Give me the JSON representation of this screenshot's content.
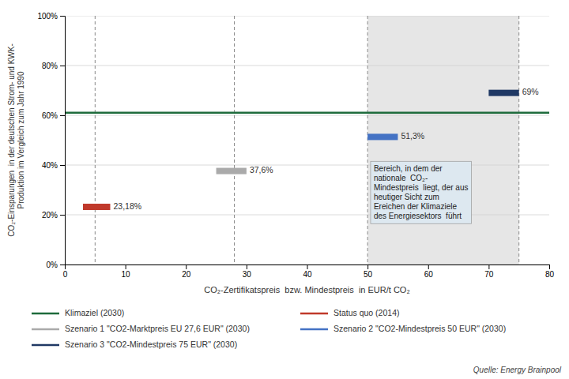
{
  "chart_data": {
    "type": "bar",
    "xlabel": "CO₂-Zertifikatspreis  bzw. Mindestpreis  in EUR/t CO₂",
    "ylabel": "CO₂-Einsparungen  in der deutschen Strom- und KWK-\nProduktion im Vergleich zum Jahr 1990",
    "xlim": [
      0,
      80
    ],
    "ylim": [
      0,
      1.0
    ],
    "xticks": [
      0,
      10,
      20,
      30,
      40,
      50,
      60,
      70,
      80
    ],
    "yticks": [
      {
        "value": 0.0,
        "label": "0%"
      },
      {
        "value": 0.2,
        "label": "20%"
      },
      {
        "value": 0.4,
        "label": "40%"
      },
      {
        "value": 0.6,
        "label": "60%"
      },
      {
        "value": 0.8,
        "label": "80%"
      },
      {
        "value": 1.0,
        "label": "100%"
      }
    ],
    "grid": true,
    "legend": "bottom",
    "data_labels": true,
    "series": [
      {
        "name": "Klimaziel (2030)",
        "type": "hline",
        "color": "#1e6b3c",
        "values": [
          0.61
        ]
      },
      {
        "name": "Status quo (2014)",
        "color": "#c0392b",
        "values": [
          0.2318
        ],
        "x_start": [
          3
        ],
        "x_end": [
          7.5
        ],
        "value_labels": [
          "23,18%"
        ]
      },
      {
        "name": "Szenario 1 \"CO2-Marktpreis EU 27,6 EUR\" (2030)",
        "color": "#aaaaaa",
        "values": [
          0.376
        ],
        "x_start": [
          25
        ],
        "x_end": [
          30
        ],
        "value_labels": [
          "37,6%"
        ]
      },
      {
        "name": "Szenario 2 \"CO2-Mindestpreis 50 EUR\" (2030)",
        "color": "#4472c4",
        "values": [
          0.513
        ],
        "x_start": [
          50
        ],
        "x_end": [
          55
        ],
        "value_labels": [
          "51,3%"
        ]
      },
      {
        "name": "Szenario 3 \"CO2-Mindestpreis 75 EUR\" (2030)",
        "color": "#1f3864",
        "values": [
          0.69
        ],
        "x_start": [
          70
        ],
        "x_end": [
          75
        ],
        "value_labels": [
          "69%"
        ]
      }
    ],
    "shaded_region": [
      50,
      75
    ],
    "vlines": [
      5,
      28,
      50,
      75
    ],
    "annotation": {
      "text": "Bereich, in dem der\nnationale  CO₂-\nMindestpreis  liegt, der aus\nheutiger Sicht zum\nEreichen der Klimaziele\ndes Energiesektors  führt",
      "x": 50.5,
      "y": 0.415
    },
    "source": "Quelle: Energy Brainpool"
  }
}
